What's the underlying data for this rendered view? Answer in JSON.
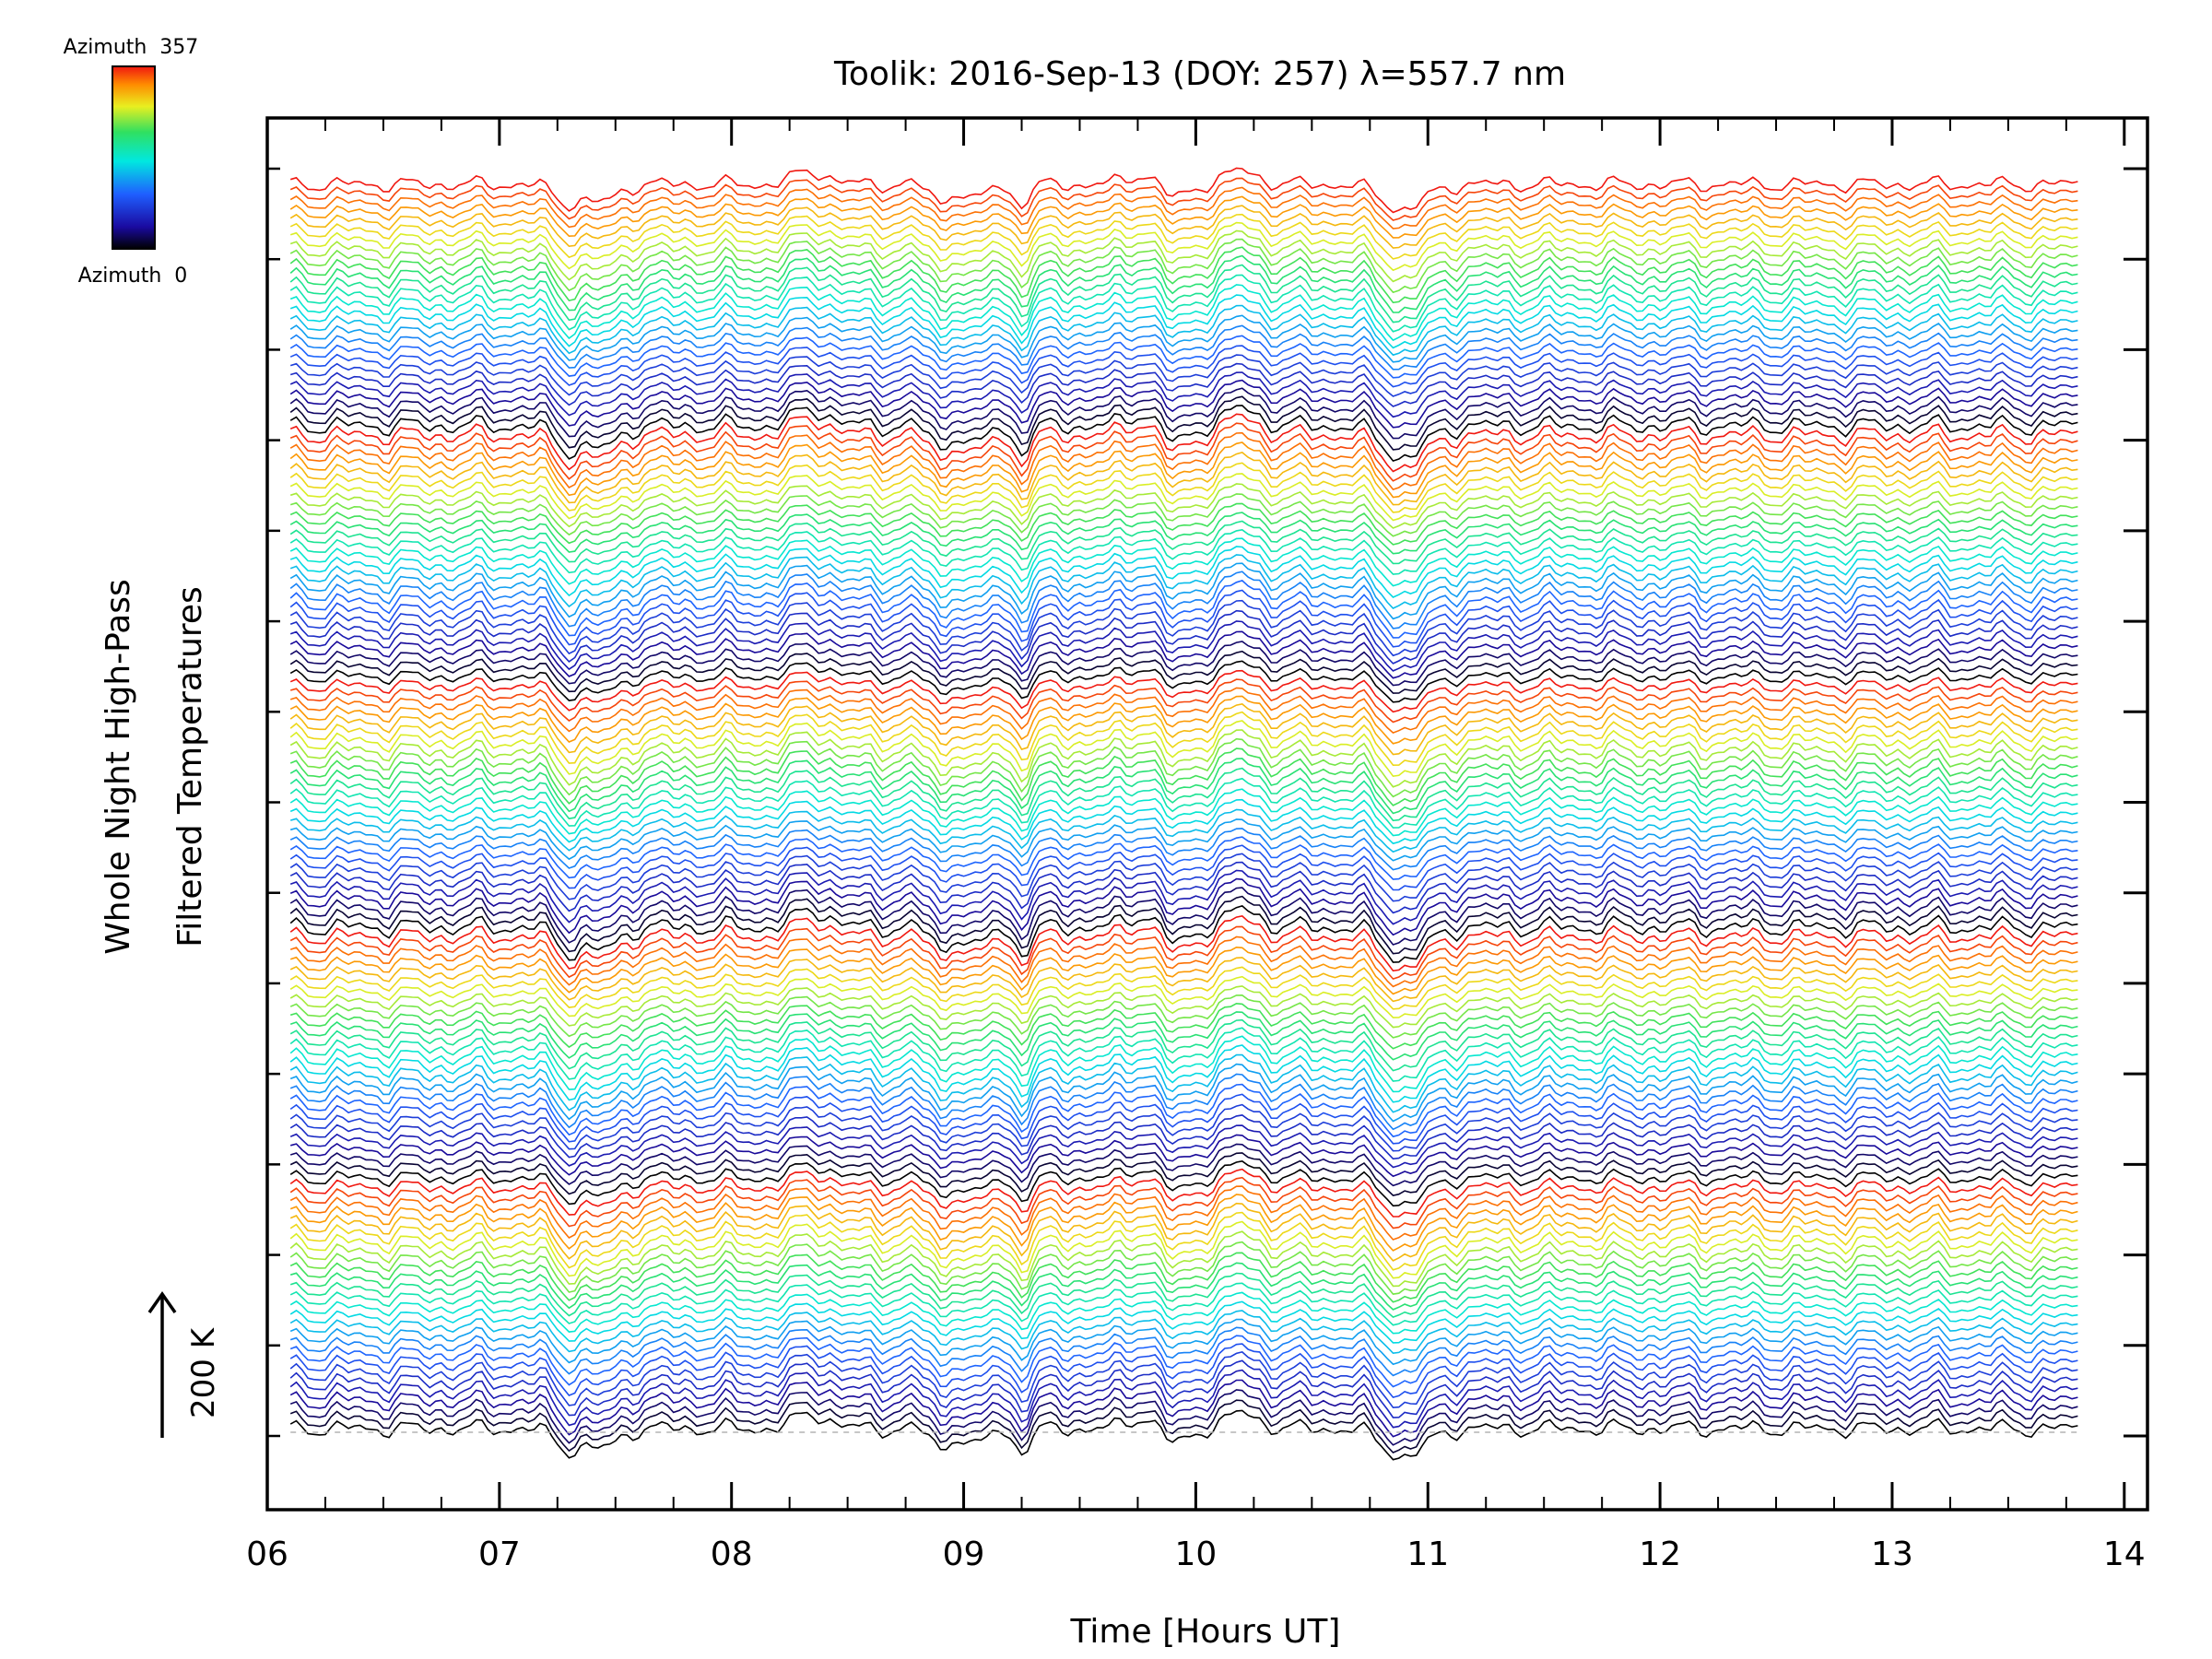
{
  "chart_data": {
    "type": "line",
    "title": "Toolik: 2016-Sep-13 (DOY: 257) λ=557.7 nm",
    "xlabel": "Time [Hours UT]",
    "ylabel_line1": "Whole Night High-Pass",
    "ylabel_line2": "Filtered Temperatures",
    "xlim": [
      6,
      14.1
    ],
    "x_ticks": [
      "06",
      "07",
      "08",
      "09",
      "10",
      "11",
      "12",
      "13",
      "14"
    ],
    "y_tick_count": 15,
    "grid": false,
    "scale_bar_label": "200 K",
    "colorbar": {
      "top_label": "Azimuth  357",
      "bottom_label": "Azimuth  0",
      "colormap": "rainbow (black-blue-cyan-green-yellow-red)"
    },
    "series_count": 135,
    "x_range_data": [
      6.1,
      13.8
    ],
    "azimuth_range": [
      0,
      357
    ],
    "baseline_dashed": true,
    "wave_features": {
      "dips_hours": [
        7.3,
        7.45,
        8.9,
        9.05,
        9.25,
        9.9,
        10.9
      ],
      "peaks_hours": [
        8.35,
        9.8,
        10.2
      ]
    }
  },
  "colors": {
    "axis": "#000000",
    "baseline": "#b4b4b4"
  }
}
